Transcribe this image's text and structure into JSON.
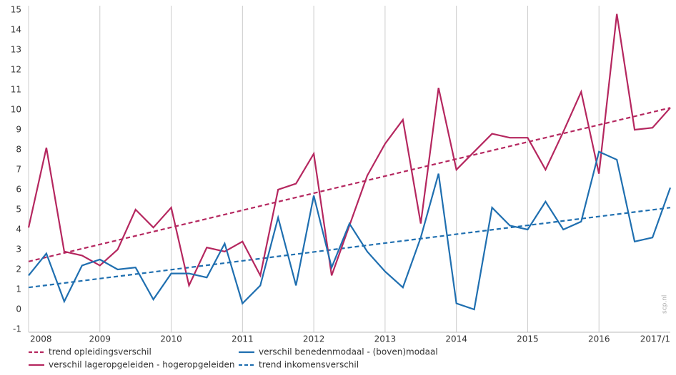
{
  "chart_data": {
    "type": "line",
    "categories": [
      "2008",
      null,
      null,
      null,
      "2009",
      null,
      null,
      null,
      "2010",
      null,
      null,
      null,
      "2011",
      null,
      null,
      null,
      "2012",
      null,
      null,
      null,
      "2013",
      null,
      null,
      null,
      "2014",
      null,
      null,
      null,
      "2015",
      null,
      null,
      null,
      "2016",
      null,
      null,
      null,
      "2017/1"
    ],
    "series": [
      {
        "name": "verschil lageropgeleiden - hogeropgeleiden",
        "color": "#b5275f",
        "values": [
          4.1,
          8.1,
          2.9,
          2.7,
          2.2,
          3.0,
          5.0,
          4.1,
          5.1,
          1.2,
          3.1,
          2.9,
          3.4,
          1.7,
          6.0,
          6.3,
          7.8,
          1.7,
          4.2,
          6.7,
          8.3,
          9.5,
          4.3,
          11.1,
          7.0,
          7.9,
          8.8,
          8.6,
          8.6,
          7.0,
          8.9,
          10.9,
          6.8,
          14.8,
          9.0,
          9.1,
          10.1
        ]
      },
      {
        "name": "verschil benedenmodaal - (boven)modaal",
        "color": "#1f6fb0",
        "values": [
          1.7,
          2.8,
          0.4,
          2.2,
          2.5,
          2.0,
          2.1,
          0.5,
          1.8,
          1.8,
          1.6,
          3.3,
          0.3,
          1.2,
          4.6,
          1.2,
          5.7,
          2.1,
          4.3,
          2.9,
          1.9,
          1.1,
          3.6,
          6.8,
          0.3,
          0.0,
          5.1,
          4.2,
          4.0,
          5.4,
          4.0,
          4.4,
          7.9,
          7.5,
          3.4,
          3.6,
          6.1
        ]
      }
    ],
    "trends": [
      {
        "name": "trend opleidingsverschil",
        "color": "#b5275f",
        "values": [
          2.4,
          10.1
        ]
      },
      {
        "name": "trend inkomensverschil",
        "color": "#1f6fb0",
        "values": [
          1.1,
          5.1
        ]
      }
    ],
    "ylim": [
      -1,
      15
    ],
    "yticks": [
      -1,
      0,
      1,
      2,
      3,
      4,
      5,
      6,
      7,
      8,
      9,
      10,
      11,
      12,
      13,
      14,
      15
    ],
    "watermark": "scp.nl"
  }
}
